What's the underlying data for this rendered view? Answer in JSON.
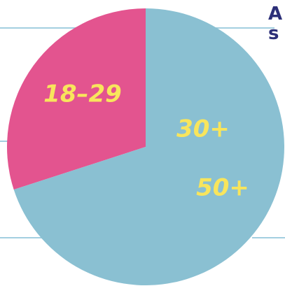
{
  "title_lines": [
    "A",
    "s"
  ],
  "chart_data": {
    "type": "pie",
    "slices": [
      {
        "labels": [
          "18–29"
        ],
        "value": 30,
        "color": "#e3548f"
      },
      {
        "labels": [
          "30+",
          "50+"
        ],
        "value": 70,
        "color": "#8ac0d2"
      }
    ],
    "label_color": "#f8e55c"
  }
}
